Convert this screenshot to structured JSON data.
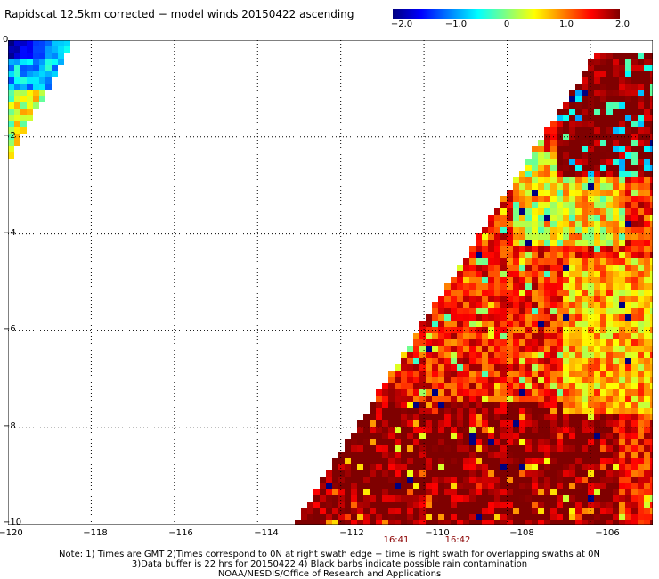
{
  "title": "Rapidscat 12.5km corrected − model winds 20150422 ascending",
  "colorbar": {
    "labels": [
      "−2.0",
      "−1.0",
      "0",
      "1.0",
      "2.0"
    ],
    "stops": [
      "#00007f",
      "#0000ff",
      "#0080ff",
      "#00ffff",
      "#80ff80",
      "#ffff00",
      "#ff8000",
      "#ff0000",
      "#7f0000"
    ]
  },
  "map": {
    "lon_range": [
      -120,
      -104.5
    ],
    "lat_range": [
      -10,
      0
    ],
    "lon_ticks": [
      "−120",
      "−118",
      "−116",
      "−114",
      "−112",
      "−110",
      "−108",
      "−106"
    ],
    "lat_ticks": [
      "0",
      "−2",
      "−4",
      "−6",
      "−8",
      "−10"
    ],
    "time_labels": [
      {
        "lon": -111.2,
        "text": "16:41"
      },
      {
        "lon": -109.6,
        "text": "16:42"
      }
    ]
  },
  "notes": [
    "Note: 1) Times are GMT 2)Times correspond to 0N at right swath edge − time is right swath for overlapping swaths at 0N",
    "3)Data buffer is 22 hrs for 20150422 4) Black barbs indicate possible rain contamination",
    "NOAA/NESDIS/Office of Research and Applications"
  ]
}
